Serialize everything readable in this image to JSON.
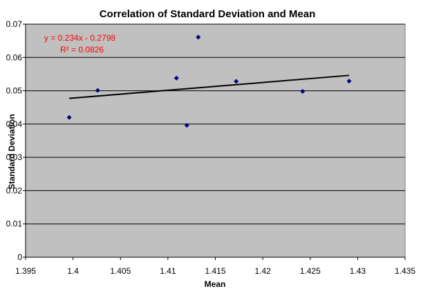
{
  "chart_data": {
    "type": "scatter",
    "title": "Correlation of Standard Deviation and Mean",
    "xlabel": "Mean",
    "ylabel": "Standard Deviation",
    "xlim": [
      1.395,
      1.435
    ],
    "ylim": [
      0,
      0.07
    ],
    "x_ticks": [
      "1.395",
      "1.4",
      "1.405",
      "1.41",
      "1.415",
      "1.42",
      "1.425",
      "1.43",
      "1.435"
    ],
    "y_ticks": [
      "0",
      "0.01",
      "0.02",
      "0.03",
      "0.04",
      "0.05",
      "0.06",
      "0.07"
    ],
    "grid": "horizontal",
    "marker_color": "#000080",
    "plot_background": "#c0c0c0",
    "points": [
      {
        "x": 1.3996,
        "y": 0.042
      },
      {
        "x": 1.4026,
        "y": 0.0501
      },
      {
        "x": 1.4109,
        "y": 0.0538
      },
      {
        "x": 1.412,
        "y": 0.0396
      },
      {
        "x": 1.4132,
        "y": 0.0661
      },
      {
        "x": 1.4172,
        "y": 0.0528
      },
      {
        "x": 1.4242,
        "y": 0.0498
      },
      {
        "x": 1.4291,
        "y": 0.0529
      }
    ],
    "trendline": {
      "type": "linear",
      "slope": 0.234,
      "intercept": -0.2798,
      "equation_label": "y = 0.234x - 0.2798",
      "r2_label": "R² = 0.0826",
      "color": "#000000"
    }
  }
}
